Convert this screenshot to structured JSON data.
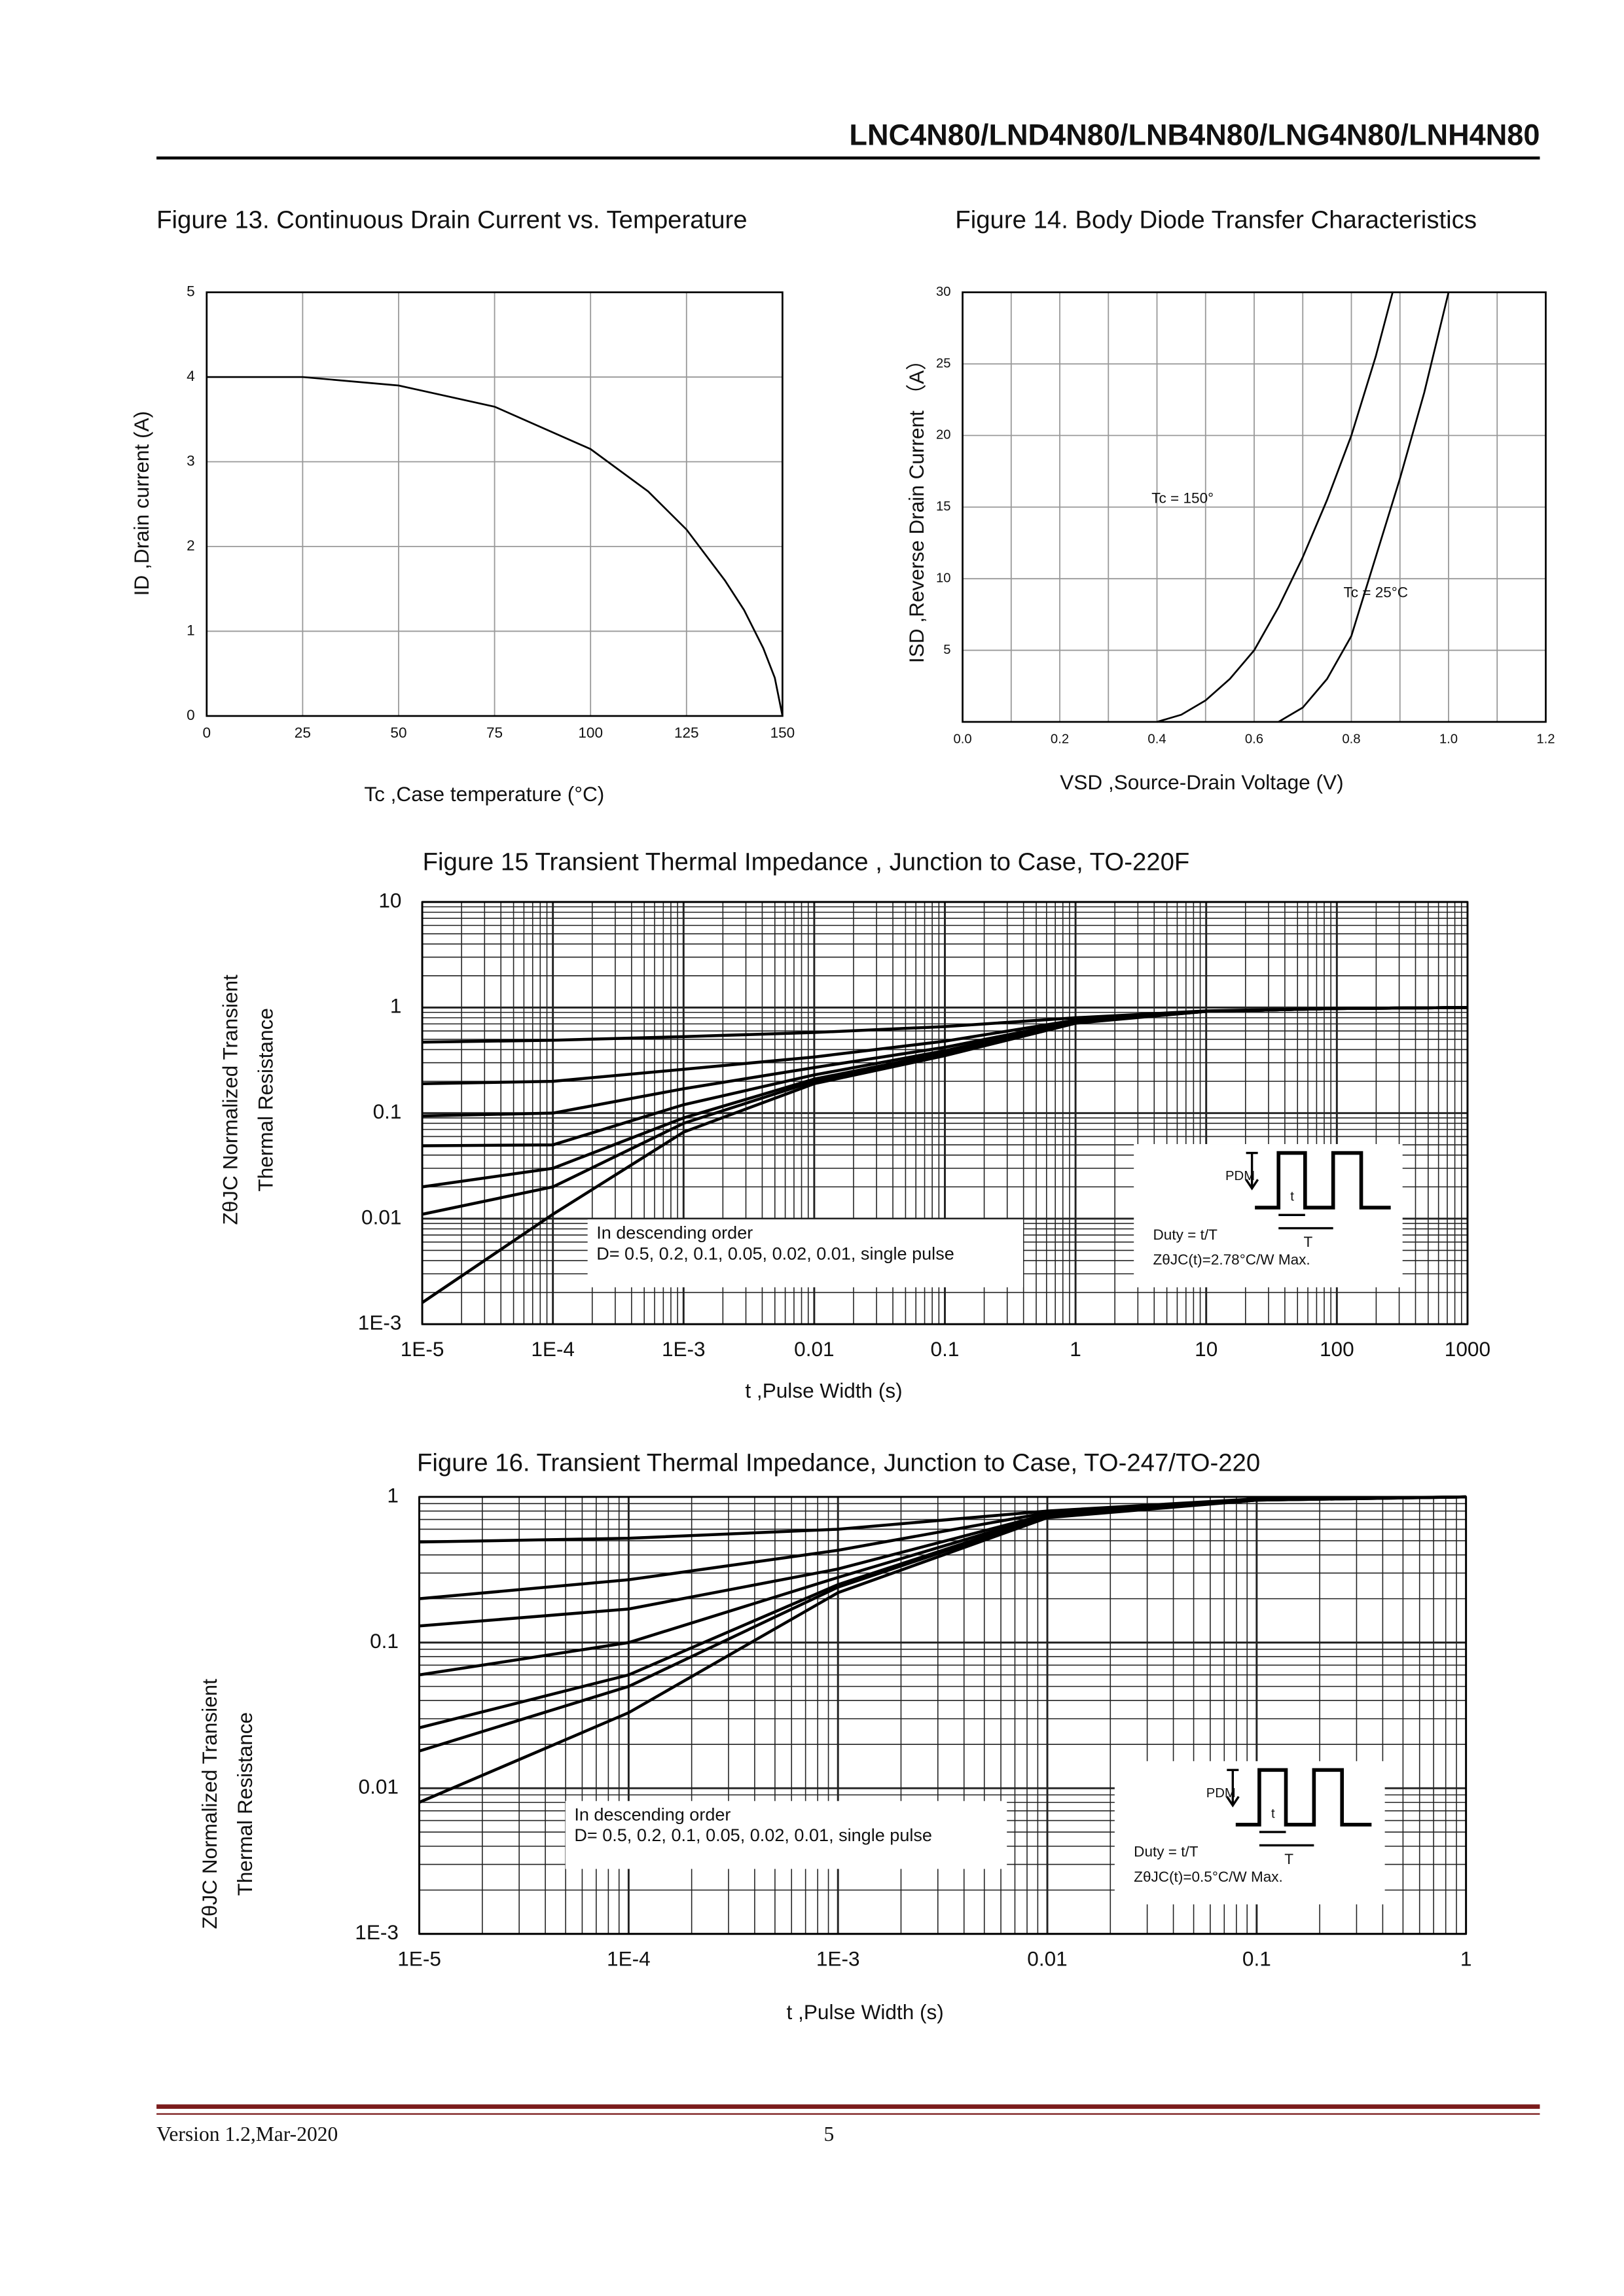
{
  "header": {
    "title": "LNC4N80/LND4N80/LNB4N80/LNG4N80/LNH4N80"
  },
  "footer": {
    "version": "Version 1.2,Mar-2020",
    "page": "5"
  },
  "chart_data": [
    {
      "type": "line",
      "title": "Figure 13. Continuous Drain Current vs. Temperature",
      "xlabel": "Tc ,Case temperature (°C)",
      "ylabel": "ID ,Drain current (A)",
      "x": [
        0,
        25,
        50,
        75,
        100,
        115,
        125,
        135,
        140,
        145,
        148,
        150
      ],
      "series": [
        {
          "color": "#000000",
          "values": [
            4,
            4,
            3.9,
            3.65,
            3.15,
            2.65,
            2.2,
            1.6,
            1.25,
            0.8,
            0.45,
            0
          ]
        }
      ],
      "xlim": [
        0,
        150
      ],
      "xticks": [
        0,
        25,
        50,
        75,
        100,
        125,
        150
      ],
      "ylim": [
        0,
        5
      ],
      "yticks": [
        0,
        1,
        2,
        3,
        4,
        5
      ],
      "grid": true
    },
    {
      "type": "line",
      "title": "Figure 14. Body Diode Transfer Characteristics",
      "xlabel": "VSD ,Source-Drain Voltage (V)",
      "ylabel": "ISD ,Reverse Drain Current （A）",
      "series": [
        {
          "name": "Tc = 150°",
          "color": "#000000",
          "x": [
            0.4,
            0.45,
            0.5,
            0.55,
            0.6,
            0.65,
            0.7,
            0.75,
            0.8,
            0.85,
            0.885
          ],
          "values": [
            0,
            0.5,
            1.5,
            3,
            5,
            8,
            11.5,
            15.5,
            20,
            25.5,
            30
          ]
        },
        {
          "name": "Tc = 25°C",
          "color": "#000000",
          "x": [
            0.65,
            0.7,
            0.75,
            0.8,
            0.85,
            0.9,
            0.95,
            1.0
          ],
          "values": [
            0,
            1,
            3,
            6,
            11.5,
            17,
            23,
            30
          ]
        }
      ],
      "xlim": [
        0,
        1.2
      ],
      "xticks": [
        {
          "value": 0,
          "label": "0.0"
        },
        0.2,
        0.4,
        0.6,
        0.8,
        {
          "value": 1,
          "label": "1.0"
        },
        1.2
      ],
      "ylim": [
        0,
        30
      ],
      "yticks": [
        5,
        10,
        15,
        20,
        25,
        30
      ],
      "grid": true,
      "minor_grid": true
    },
    {
      "type": "line",
      "title": "Figure 15 Transient Thermal Impedance , Junction to Case, TO-220F",
      "xlabel": "t ,Pulse Width (s)",
      "ylabel": [
        "ZθJC Normalized Transient",
        "Thermal Resistance"
      ],
      "xlog": true,
      "ylog": true,
      "x": [
        1e-05,
        0.0001,
        0.001,
        0.01,
        0.1,
        1,
        10,
        100,
        1000
      ],
      "series": [
        {
          "color": "#000000",
          "values": [
            0.47,
            0.49,
            0.53,
            0.58,
            0.66,
            0.8,
            0.93,
            0.98,
            1.0
          ]
        },
        {
          "color": "#000000",
          "values": [
            0.19,
            0.2,
            0.26,
            0.34,
            0.48,
            0.76,
            0.92,
            0.98,
            1.0
          ]
        },
        {
          "color": "#000000",
          "values": [
            0.094,
            0.1,
            0.17,
            0.27,
            0.42,
            0.74,
            0.92,
            0.98,
            1.0
          ]
        },
        {
          "color": "#000000",
          "values": [
            0.049,
            0.05,
            0.12,
            0.23,
            0.39,
            0.73,
            0.92,
            0.98,
            1.0
          ]
        },
        {
          "color": "#000000",
          "values": [
            0.02,
            0.03,
            0.09,
            0.21,
            0.37,
            0.72,
            0.92,
            0.98,
            1.0
          ]
        },
        {
          "color": "#000000",
          "values": [
            0.011,
            0.02,
            0.08,
            0.2,
            0.36,
            0.72,
            0.92,
            0.98,
            1.0
          ]
        },
        {
          "color": "#000000",
          "values": [
            0.0016,
            0.011,
            0.066,
            0.19,
            0.35,
            0.71,
            0.92,
            0.98,
            1.0
          ]
        }
      ],
      "xlim": [
        1e-05,
        1000
      ],
      "xticks": [
        {
          "value": 1e-05,
          "label": "1E-5"
        },
        {
          "value": 0.0001,
          "label": "1E-4"
        },
        {
          "value": 0.001,
          "label": "1E-3"
        },
        0.01,
        0.1,
        1,
        10,
        100,
        1000
      ],
      "ylim": [
        0.001,
        10
      ],
      "yticks": [
        {
          "value": 0.001,
          "label": "1E-3"
        },
        0.01,
        0.1,
        1,
        10
      ],
      "grid": true,
      "note": [
        "In descending order",
        "D= 0.5, 0.2, 0.1, 0.05, 0.02, 0.01, single pulse"
      ],
      "inset": {
        "pdm": "PDM",
        "t": "t",
        "period": "T",
        "duty": "Duty = t/T",
        "zth": "ZθJC(t)=2.78°C/W Max."
      }
    },
    {
      "type": "line",
      "title": "Figure 16. Transient Thermal Impedance, Junction to Case, TO-247/TO-220",
      "xlabel": "t ,Pulse Width (s)",
      "ylabel": [
        "ZθJC Normalized Transient",
        "Thermal Resistance"
      ],
      "xlog": true,
      "ylog": true,
      "x": [
        1e-05,
        0.0001,
        0.001,
        0.01,
        0.1,
        1
      ],
      "series": [
        {
          "color": "#000000",
          "values": [
            0.49,
            0.52,
            0.6,
            0.8,
            0.97,
            1.0
          ]
        },
        {
          "color": "#000000",
          "values": [
            0.2,
            0.27,
            0.43,
            0.78,
            0.96,
            1.0
          ]
        },
        {
          "color": "#000000",
          "values": [
            0.13,
            0.17,
            0.32,
            0.76,
            0.96,
            1.0
          ]
        },
        {
          "color": "#000000",
          "values": [
            0.06,
            0.1,
            0.28,
            0.75,
            0.96,
            1.0
          ]
        },
        {
          "color": "#000000",
          "values": [
            0.026,
            0.06,
            0.25,
            0.74,
            0.95,
            1.0
          ]
        },
        {
          "color": "#000000",
          "values": [
            0.018,
            0.05,
            0.24,
            0.73,
            0.95,
            1.0
          ]
        },
        {
          "color": "#000000",
          "values": [
            0.008,
            0.033,
            0.22,
            0.72,
            0.95,
            1.0
          ]
        }
      ],
      "xlim": [
        1e-05,
        1
      ],
      "xticks": [
        {
          "value": 1e-05,
          "label": "1E-5"
        },
        {
          "value": 0.0001,
          "label": "1E-4"
        },
        {
          "value": 0.001,
          "label": "1E-3"
        },
        0.01,
        0.1,
        1
      ],
      "ylim": [
        0.001,
        1
      ],
      "yticks": [
        {
          "value": 0.001,
          "label": "1E-3"
        },
        0.01,
        0.1,
        1
      ],
      "grid": true,
      "note": [
        "In descending order",
        "D= 0.5, 0.2, 0.1, 0.05, 0.02, 0.01, single pulse"
      ],
      "inset": {
        "pdm": "PDM",
        "t": "t",
        "period": "T",
        "duty": "Duty = t/T",
        "zth": "ZθJC(t)=0.5°C/W Max."
      }
    }
  ]
}
